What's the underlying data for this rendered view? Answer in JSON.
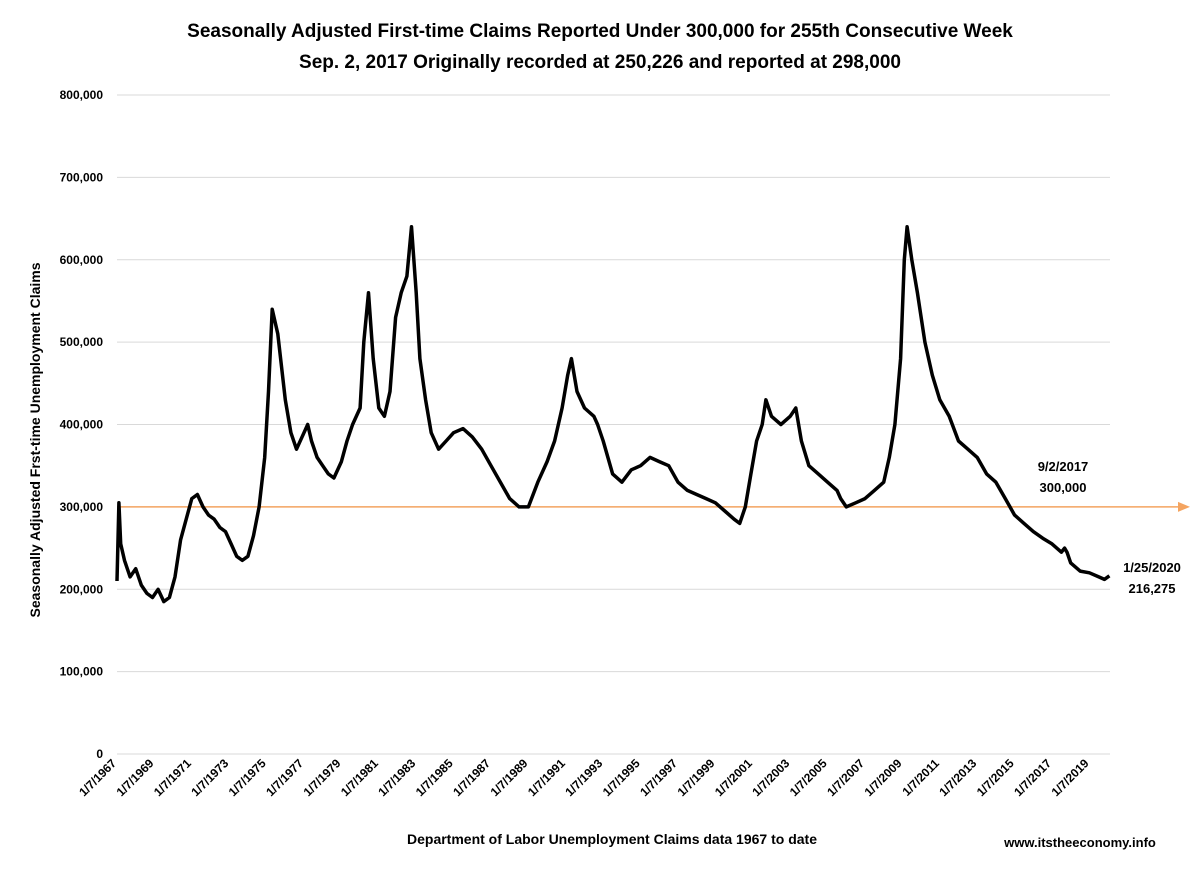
{
  "chart_data": {
    "type": "line",
    "title": "Seasonally Adjusted First-time Claims Reported Under 300,000 for 255th Consecutive Week",
    "subtitle": "Sep. 2, 2017 Originally recorded at 250,226 and reported at 298,000",
    "xlabel": "Department of Labor Unemployment Claims data 1967 to date",
    "ylabel": "Seasonally Adjusted Frst-time Unemployment Claims",
    "ylim": [
      0,
      800000
    ],
    "yticks": [
      0,
      100000,
      200000,
      300000,
      400000,
      500000,
      600000,
      700000,
      800000
    ],
    "ytick_labels": [
      "0",
      "100,000",
      "200,000",
      "300,000",
      "400,000",
      "500,000",
      "600,000",
      "700,000",
      "800,000"
    ],
    "xlim": [
      1967.0,
      2020.1
    ],
    "xticks": [
      1967,
      1969,
      1971,
      1973,
      1975,
      1977,
      1979,
      1981,
      1983,
      1985,
      1987,
      1989,
      1991,
      1993,
      1995,
      1997,
      1999,
      2001,
      2003,
      2005,
      2007,
      2009,
      2011,
      2013,
      2015,
      2017,
      2019
    ],
    "xtick_labels": [
      "1/7/1967",
      "1/7/1969",
      "1/7/1971",
      "1/7/1973",
      "1/7/1975",
      "1/7/1977",
      "1/7/1979",
      "1/7/1981",
      "1/7/1983",
      "1/7/1985",
      "1/7/1987",
      "1/7/1989",
      "1/7/1991",
      "1/7/1993",
      "1/7/1995",
      "1/7/1997",
      "1/7/1999",
      "1/7/2001",
      "1/7/2003",
      "1/7/2005",
      "1/7/2007",
      "1/7/2009",
      "1/7/2011",
      "1/7/2013",
      "1/7/2015",
      "1/7/2017",
      "1/7/2019"
    ],
    "grid": true,
    "series": [
      {
        "color": "#000000",
        "x": [
          1967.0,
          1967.1,
          1967.2,
          1967.4,
          1967.7,
          1968.0,
          1968.3,
          1968.6,
          1968.9,
          1969.2,
          1969.5,
          1969.8,
          1970.1,
          1970.4,
          1970.7,
          1971.0,
          1971.3,
          1971.6,
          1971.9,
          1972.2,
          1972.5,
          1972.8,
          1973.1,
          1973.4,
          1973.7,
          1974.0,
          1974.3,
          1974.6,
          1974.9,
          1975.1,
          1975.3,
          1975.6,
          1976.0,
          1976.3,
          1976.6,
          1977.0,
          1977.2,
          1977.4,
          1977.7,
          1978.0,
          1978.3,
          1978.6,
          1979.0,
          1979.3,
          1979.6,
          1980.0,
          1980.2,
          1980.45,
          1980.7,
          1981.0,
          1981.3,
          1981.6,
          1981.9,
          1982.2,
          1982.5,
          1982.75,
          1983.0,
          1983.2,
          1983.5,
          1983.8,
          1984.2,
          1984.6,
          1985.0,
          1985.5,
          1986.0,
          1986.5,
          1987.0,
          1987.5,
          1988.0,
          1988.5,
          1989.0,
          1989.5,
          1990.0,
          1990.4,
          1990.8,
          1991.1,
          1991.3,
          1991.6,
          1992.0,
          1992.5,
          1992.7,
          1993.0,
          1993.5,
          1994.0,
          1994.5,
          1995.0,
          1995.5,
          1996.0,
          1996.5,
          1997.0,
          1997.5,
          1998.0,
          1998.5,
          1999.0,
          1999.5,
          2000.0,
          2000.3,
          2000.6,
          2000.9,
          2001.2,
          2001.5,
          2001.7,
          2002.0,
          2002.5,
          2003.0,
          2003.3,
          2003.6,
          2004.0,
          2004.5,
          2005.0,
          2005.5,
          2005.7,
          2006.0,
          2006.5,
          2007.0,
          2007.5,
          2008.0,
          2008.3,
          2008.6,
          2008.9,
          2009.1,
          2009.25,
          2009.5,
          2009.8,
          2010.2,
          2010.6,
          2011.0,
          2011.5,
          2012.0,
          2012.5,
          2013.0,
          2013.5,
          2014.0,
          2014.5,
          2015.0,
          2015.5,
          2016.0,
          2016.5,
          2017.0,
          2017.5,
          2017.67,
          2017.8,
          2018.0,
          2018.5,
          2019.0,
          2019.5,
          2019.8,
          2020.07
        ],
        "y": [
          210000,
          305000,
          255000,
          235000,
          215000,
          225000,
          205000,
          195000,
          190000,
          200000,
          185000,
          190000,
          215000,
          260000,
          285000,
          310000,
          315000,
          300000,
          290000,
          285000,
          275000,
          270000,
          255000,
          240000,
          235000,
          240000,
          265000,
          300000,
          360000,
          440000,
          540000,
          510000,
          430000,
          390000,
          370000,
          390000,
          400000,
          380000,
          360000,
          350000,
          340000,
          335000,
          355000,
          380000,
          400000,
          420000,
          500000,
          560000,
          480000,
          420000,
          410000,
          440000,
          530000,
          560000,
          580000,
          640000,
          560000,
          480000,
          430000,
          390000,
          370000,
          380000,
          390000,
          395000,
          385000,
          370000,
          350000,
          330000,
          310000,
          300000,
          300000,
          330000,
          355000,
          380000,
          420000,
          460000,
          480000,
          440000,
          420000,
          410000,
          400000,
          380000,
          340000,
          330000,
          345000,
          350000,
          360000,
          355000,
          350000,
          330000,
          320000,
          315000,
          310000,
          305000,
          295000,
          285000,
          280000,
          300000,
          340000,
          380000,
          400000,
          430000,
          410000,
          400000,
          410000,
          420000,
          380000,
          350000,
          340000,
          330000,
          320000,
          310000,
          300000,
          305000,
          310000,
          320000,
          330000,
          360000,
          400000,
          480000,
          600000,
          640000,
          600000,
          560000,
          500000,
          460000,
          430000,
          410000,
          380000,
          370000,
          360000,
          340000,
          330000,
          310000,
          290000,
          280000,
          270000,
          262000,
          255000,
          245000,
          250000,
          245000,
          232000,
          222000,
          220000,
          215000,
          212000,
          216275
        ]
      }
    ],
    "reference_line": {
      "y": 300000,
      "color": "#f4a460"
    },
    "annotations": [
      {
        "text_line1": "9/2/2017",
        "text_line2": "300,000"
      },
      {
        "text_line1": "1/25/2020",
        "text_line2": "216,275"
      }
    ],
    "credit": "www.itstheeconomy.info"
  }
}
